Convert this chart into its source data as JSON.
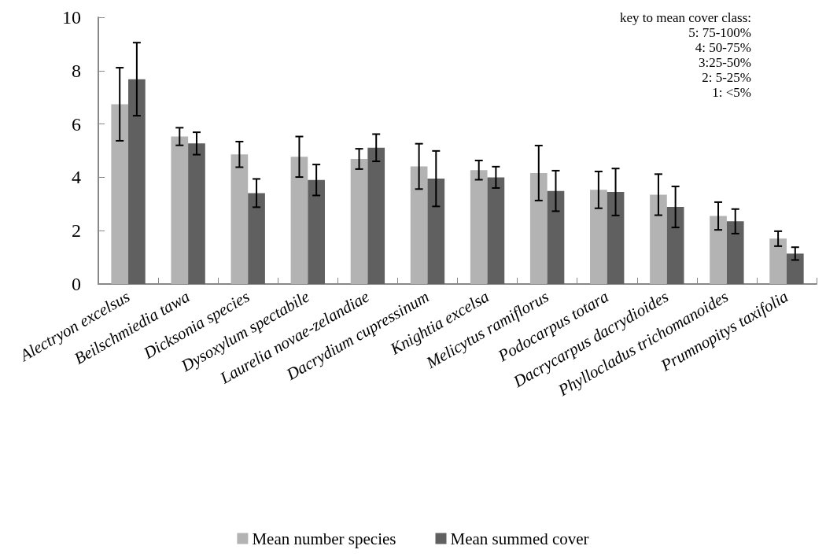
{
  "chart_data": {
    "type": "bar",
    "categories": [
      "Alectryon excelsus",
      "Beilschmiedia tawa",
      "Dicksonia species",
      "Dysoxylum spectabile",
      "Laurelia novae-zelandiae",
      "Dacrydium cupressinum",
      "Knightia excelsa",
      "Melicytus ramiflorus",
      "Podocarpus totara",
      "Dacrycarpus dacrydioides",
      "Phyllocladus trichomanoides",
      "Prumnopitys taxifolia"
    ],
    "series": [
      {
        "name": "Mean number species",
        "color": "#b3b3b3",
        "values": [
          6.74,
          5.53,
          4.86,
          4.77,
          4.69,
          4.41,
          4.27,
          4.16,
          3.53,
          3.35,
          2.55,
          1.7
        ],
        "errors": [
          1.37,
          0.33,
          0.48,
          0.76,
          0.38,
          0.85,
          0.36,
          1.03,
          0.69,
          0.77,
          0.52,
          0.28
        ]
      },
      {
        "name": "Mean summed cover",
        "color": "#606060",
        "values": [
          7.68,
          5.27,
          3.41,
          3.9,
          5.11,
          3.95,
          4.0,
          3.49,
          3.45,
          2.89,
          2.35,
          1.14
        ],
        "errors": [
          1.37,
          0.42,
          0.53,
          0.58,
          0.51,
          1.04,
          0.4,
          0.76,
          0.88,
          0.77,
          0.46,
          0.24
        ]
      }
    ],
    "ylim": [
      0,
      10
    ],
    "yticks": [
      0,
      2,
      4,
      6,
      8,
      10
    ],
    "grid": false,
    "legend": "bottom",
    "annotations": [
      "key to mean cover class:",
      "5: 75-100%",
      "4: 50-75%",
      "3:25-50%",
      "2: 5-25%",
      "1: <5%"
    ]
  }
}
